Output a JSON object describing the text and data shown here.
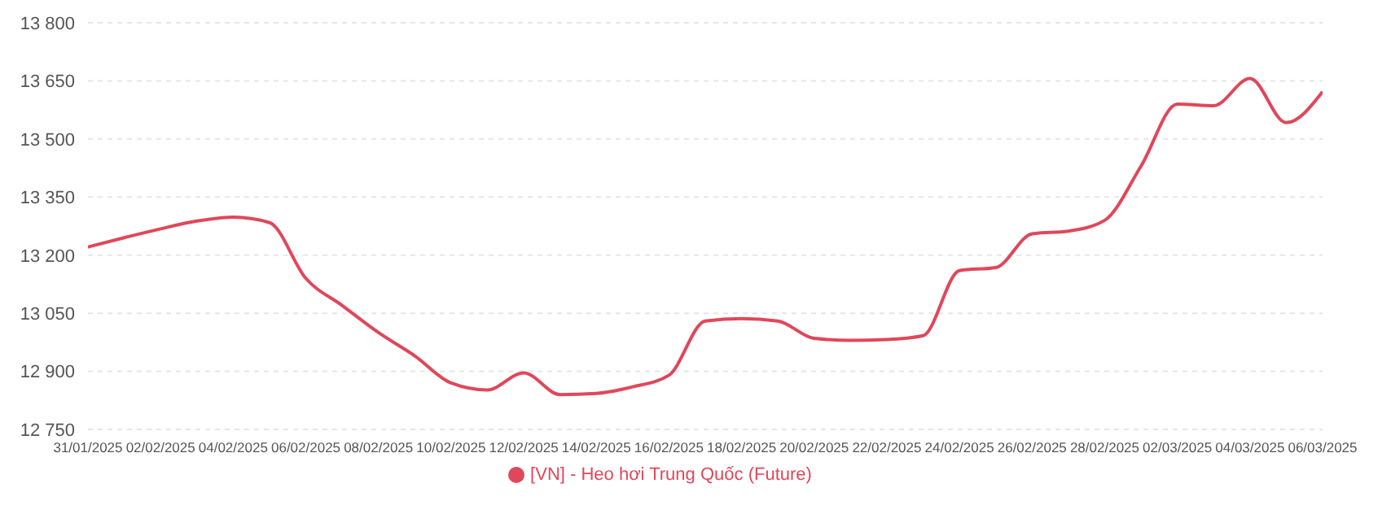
{
  "chart_data": {
    "type": "line",
    "categories": [
      "31/01/2025",
      null,
      "02/02/2025",
      null,
      "04/02/2025",
      null,
      "06/02/2025",
      null,
      "08/02/2025",
      null,
      "10/02/2025",
      null,
      "12/02/2025",
      null,
      "14/02/2025",
      null,
      "16/02/2025",
      null,
      "18/02/2025",
      null,
      "20/02/2025",
      null,
      "22/02/2025",
      null,
      "24/02/2025",
      null,
      "26/02/2025",
      null,
      "28/02/2025",
      null,
      "02/03/2025",
      null,
      "04/03/2025",
      null,
      "06/03/2025"
    ],
    "series": [
      {
        "name": "[VN] - Heo hơi Trung Quốc (Future)",
        "color": "#e0475a",
        "values": [
          13221,
          13245,
          13268,
          13288,
          13298,
          13284,
          13140,
          13070,
          13000,
          12940,
          12870,
          12852,
          12896,
          12840,
          12843,
          12860,
          12890,
          13030,
          13036,
          13030,
          12985,
          12980,
          12982,
          12992,
          13160,
          13168,
          13255,
          13262,
          13290,
          13430,
          13590,
          13586,
          13656,
          13542,
          13622
        ]
      }
    ],
    "ylim": [
      12750,
      13800
    ],
    "yticks": [
      {
        "value": 12750,
        "label": "12 750"
      },
      {
        "value": 12900,
        "label": "12 900"
      },
      {
        "value": 13050,
        "label": "13 050"
      },
      {
        "value": 13200,
        "label": "13 200"
      },
      {
        "value": 13350,
        "label": "13 350"
      },
      {
        "value": 13500,
        "label": "13 500"
      },
      {
        "value": 13650,
        "label": "13 650"
      },
      {
        "value": 13800,
        "label": "13 800"
      }
    ],
    "grid": "y",
    "legend": "bottom",
    "marker": "none",
    "line_style": "solid"
  }
}
